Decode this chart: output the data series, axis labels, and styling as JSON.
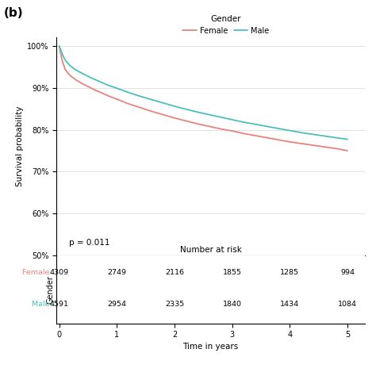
{
  "title_label": "(b)",
  "legend_title": "Gender",
  "female_color": "#E8837A",
  "male_color": "#4BBFBF",
  "ylabel": "Survival probability",
  "xlabel": "Time in years",
  "ylim": [
    0.5,
    1.02
  ],
  "yticks": [
    0.5,
    0.6,
    0.7,
    0.8,
    0.9,
    1.0
  ],
  "ytick_labels": [
    "50%",
    "60%",
    "70%",
    "80%",
    "90%",
    "100%"
  ],
  "xlim": [
    -0.05,
    5.3
  ],
  "xticks": [
    0,
    1,
    2,
    3,
    4,
    5
  ],
  "pvalue_text": "p = 0.011",
  "number_at_risk_title": "Number at risk",
  "risk_times": [
    0,
    1,
    2,
    3,
    4,
    5
  ],
  "female_risk": [
    4309,
    2749,
    2116,
    1855,
    1285,
    994
  ],
  "male_risk": [
    4591,
    2954,
    2335,
    1840,
    1434,
    1084
  ],
  "risk_ylabel": "Gender",
  "female_label": "Female",
  "male_label": "Male",
  "background_color": "#ffffff",
  "grid_color": "#dddddd",
  "female_times": [
    0.0,
    0.05,
    0.1,
    0.15,
    0.2,
    0.3,
    0.4,
    0.5,
    0.6,
    0.7,
    0.8,
    0.9,
    1.0,
    1.2,
    1.4,
    1.6,
    1.8,
    2.0,
    2.2,
    2.4,
    2.6,
    2.8,
    3.0,
    3.2,
    3.4,
    3.6,
    3.8,
    4.0,
    4.2,
    4.4,
    4.6,
    4.8,
    5.0
  ],
  "female_surv": [
    1.0,
    0.965,
    0.945,
    0.935,
    0.928,
    0.918,
    0.91,
    0.903,
    0.896,
    0.89,
    0.884,
    0.878,
    0.873,
    0.862,
    0.853,
    0.844,
    0.836,
    0.828,
    0.821,
    0.814,
    0.808,
    0.802,
    0.797,
    0.791,
    0.786,
    0.781,
    0.776,
    0.771,
    0.767,
    0.763,
    0.759,
    0.755,
    0.75
  ],
  "male_times": [
    0.0,
    0.04,
    0.08,
    0.12,
    0.18,
    0.25,
    0.35,
    0.45,
    0.55,
    0.65,
    0.75,
    0.85,
    1.0,
    1.2,
    1.4,
    1.6,
    1.8,
    2.0,
    2.2,
    2.4,
    2.6,
    2.8,
    3.0,
    3.2,
    3.4,
    3.6,
    3.8,
    4.0,
    4.2,
    4.4,
    4.6,
    4.8,
    5.0
  ],
  "male_surv": [
    1.0,
    0.985,
    0.972,
    0.963,
    0.954,
    0.946,
    0.938,
    0.931,
    0.924,
    0.918,
    0.912,
    0.906,
    0.899,
    0.889,
    0.88,
    0.872,
    0.864,
    0.856,
    0.849,
    0.842,
    0.836,
    0.83,
    0.824,
    0.818,
    0.813,
    0.808,
    0.803,
    0.798,
    0.793,
    0.789,
    0.785,
    0.781,
    0.777
  ]
}
